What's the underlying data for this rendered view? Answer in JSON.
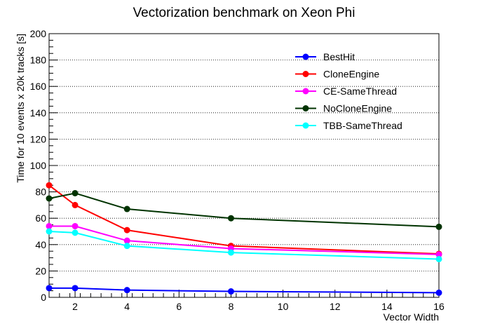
{
  "chart_data": {
    "type": "line",
    "title": "Vectorization benchmark on Xeon Phi",
    "xlabel": "Vector Width",
    "ylabel": "Time for 10 events x 20k tracks [s]",
    "xlim": [
      1,
      16
    ],
    "ylim": [
      0,
      200
    ],
    "x_ticks": [
      "2",
      "4",
      "6",
      "8",
      "10",
      "12",
      "14",
      "16"
    ],
    "y_ticks": [
      "0",
      "20",
      "40",
      "60",
      "80",
      "100",
      "120",
      "140",
      "160",
      "180",
      "200"
    ],
    "grid": "horizontal dotted",
    "legend_position": "top-right",
    "x": [
      1,
      2,
      4,
      8,
      16
    ],
    "series": [
      {
        "name": "BestHit",
        "color": "#0000ff",
        "values": [
          7,
          7,
          5.5,
          4.5,
          3.5
        ]
      },
      {
        "name": "CloneEngine",
        "color": "#ff0000",
        "values": [
          85,
          70,
          51,
          39,
          33
        ]
      },
      {
        "name": "CE-SameThread",
        "color": "#ff00ff",
        "values": [
          54,
          54,
          43,
          37,
          32.5
        ]
      },
      {
        "name": "NoCloneEngine",
        "color": "#003300",
        "values": [
          75,
          79,
          67,
          60,
          53.5
        ]
      },
      {
        "name": "TBB-SameThread",
        "color": "#00ffff",
        "values": [
          50,
          49,
          39,
          34,
          29
        ]
      }
    ]
  }
}
